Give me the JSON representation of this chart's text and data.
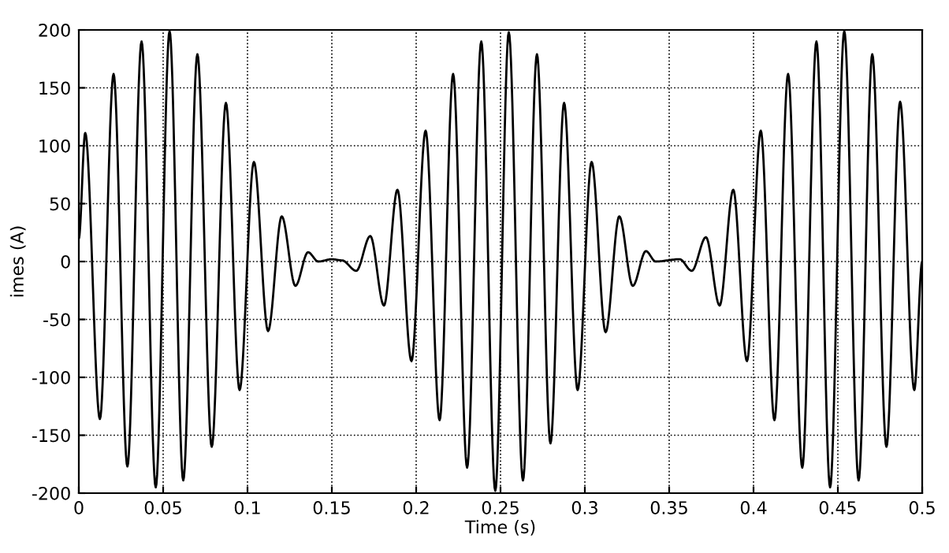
{
  "chart_data": {
    "type": "line",
    "xlabel": "Time (s)",
    "ylabel": "imes (A)",
    "grid": true,
    "line_style": "solid",
    "marker": "none",
    "xlim": [
      0,
      0.5
    ],
    "ylim": [
      -200,
      200
    ],
    "xticks": [
      0,
      0.05,
      0.1,
      0.15,
      0.2,
      0.25,
      0.3,
      0.35,
      0.4,
      0.45,
      0.5
    ],
    "yticks": [
      -200,
      -150,
      -100,
      -50,
      0,
      50,
      100,
      150,
      200
    ],
    "series": [
      {
        "color": "#000000",
        "x": [
          0,
          0.0038,
          0.0125,
          0.0206,
          0.0288,
          0.0372,
          0.0456,
          0.0538,
          0.0619,
          0.0703,
          0.0788,
          0.0872,
          0.0953,
          0.1038,
          0.1122,
          0.1203,
          0.1284,
          0.1359,
          0.142,
          0.15,
          0.156,
          0.1645,
          0.1728,
          0.1809,
          0.1889,
          0.1972,
          0.2056,
          0.2139,
          0.2219,
          0.2302,
          0.2386,
          0.2469,
          0.2549,
          0.2633,
          0.2716,
          0.2796,
          0.2877,
          0.2957,
          0.304,
          0.3123,
          0.3204,
          0.3284,
          0.3362,
          0.342,
          0.3562,
          0.3634,
          0.3718,
          0.3799,
          0.388,
          0.3961,
          0.4043,
          0.4124,
          0.4205,
          0.4289,
          0.4373,
          0.4454,
          0.4538,
          0.4623,
          0.4704,
          0.4788,
          0.4869,
          0.4953,
          0.5
        ],
        "values": [
          20,
          111,
          -136,
          162,
          -177,
          190,
          -195,
          199,
          -189,
          179,
          -160,
          137,
          -111,
          86,
          -60,
          39,
          -21,
          8,
          0,
          2,
          1,
          -8,
          22,
          -38,
          62,
          -86,
          113,
          -137,
          162,
          -178,
          190,
          -198,
          198,
          -189,
          179,
          -157,
          137,
          -111,
          86,
          -61,
          39,
          -21,
          9,
          0,
          2,
          -8,
          21,
          -38,
          62,
          -86,
          113,
          -137,
          162,
          -178,
          190,
          -195,
          199,
          -189,
          179,
          -160,
          138,
          -111,
          0
        ]
      }
    ]
  }
}
